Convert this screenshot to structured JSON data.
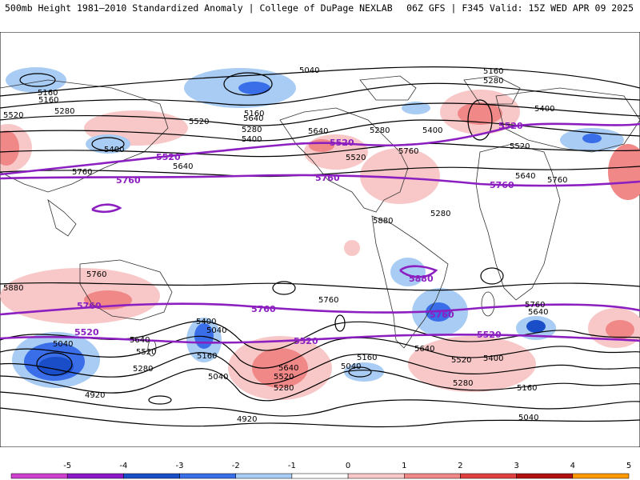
{
  "header": {
    "left": "500mb Height 1981–2010 Standardized Anomaly | College of DuPage NEXLAB",
    "right": "06Z GFS | F345 Valid: 15Z WED APR 09 2025"
  },
  "contour_labels": [
    "5040",
    "5160",
    "5280",
    "5400",
    "5520",
    "5640",
    "5760",
    "5880",
    "4920"
  ],
  "map_labels": [
    {
      "text": "5040"
    },
    {
      "text": "5160"
    },
    {
      "text": "5280"
    },
    {
      "text": "5520"
    },
    {
      "text": "5160"
    },
    {
      "text": "5280"
    },
    {
      "text": "5400"
    },
    {
      "text": "5520"
    },
    {
      "text": "5640"
    },
    {
      "text": "5760"
    },
    {
      "text": "5640"
    },
    {
      "text": "5400"
    },
    {
      "text": "5280"
    },
    {
      "text": "5160"
    },
    {
      "text": "5280"
    },
    {
      "text": "5400"
    },
    {
      "text": "5760"
    },
    {
      "text": "5640"
    },
    {
      "text": "5520"
    },
    {
      "text": "5160"
    },
    {
      "text": "5280"
    },
    {
      "text": "5400"
    },
    {
      "text": "5520"
    },
    {
      "text": "5640"
    },
    {
      "text": "5760"
    },
    {
      "text": "5880"
    },
    {
      "text": "5880"
    },
    {
      "text": "5760"
    },
    {
      "text": "5640"
    },
    {
      "text": "5520"
    },
    {
      "text": "5280"
    },
    {
      "text": "5040"
    },
    {
      "text": "4920"
    },
    {
      "text": "5400"
    },
    {
      "text": "5160"
    },
    {
      "text": "5040"
    },
    {
      "text": "5640"
    },
    {
      "text": "5520"
    },
    {
      "text": "5280"
    },
    {
      "text": "5160"
    },
    {
      "text": "5040"
    },
    {
      "text": "5760"
    },
    {
      "text": "4920"
    },
    {
      "text": "5640"
    },
    {
      "text": "5520"
    },
    {
      "text": "5400"
    },
    {
      "text": "5280"
    },
    {
      "text": "5160"
    },
    {
      "text": "5040"
    },
    {
      "text": "5760"
    },
    {
      "text": "5640"
    },
    {
      "text": "5040"
    }
  ],
  "purple_labels": [
    {
      "text": "5520"
    },
    {
      "text": "5520"
    },
    {
      "text": "5520"
    },
    {
      "text": "5760"
    },
    {
      "text": "5760"
    },
    {
      "text": "5760"
    },
    {
      "text": "5880"
    },
    {
      "text": "5760"
    },
    {
      "text": "5760"
    },
    {
      "text": "5760"
    },
    {
      "text": "5520"
    },
    {
      "text": "5520"
    },
    {
      "text": "5520"
    }
  ],
  "colorbar": {
    "ticks": [
      "-5",
      "-4",
      "-3",
      "-2",
      "-1",
      "0",
      "1",
      "2",
      "3",
      "4",
      "5"
    ],
    "colors": [
      "#d040d0",
      "#8a18c8",
      "#1a4ec8",
      "#3a6ee8",
      "#a8ccf4",
      "#ffffff",
      "#f8c8c8",
      "#f08888",
      "#e04040",
      "#b01010",
      "#ff9900"
    ]
  },
  "colors": {
    "contour_5520_5760": "#8c1fc0"
  }
}
